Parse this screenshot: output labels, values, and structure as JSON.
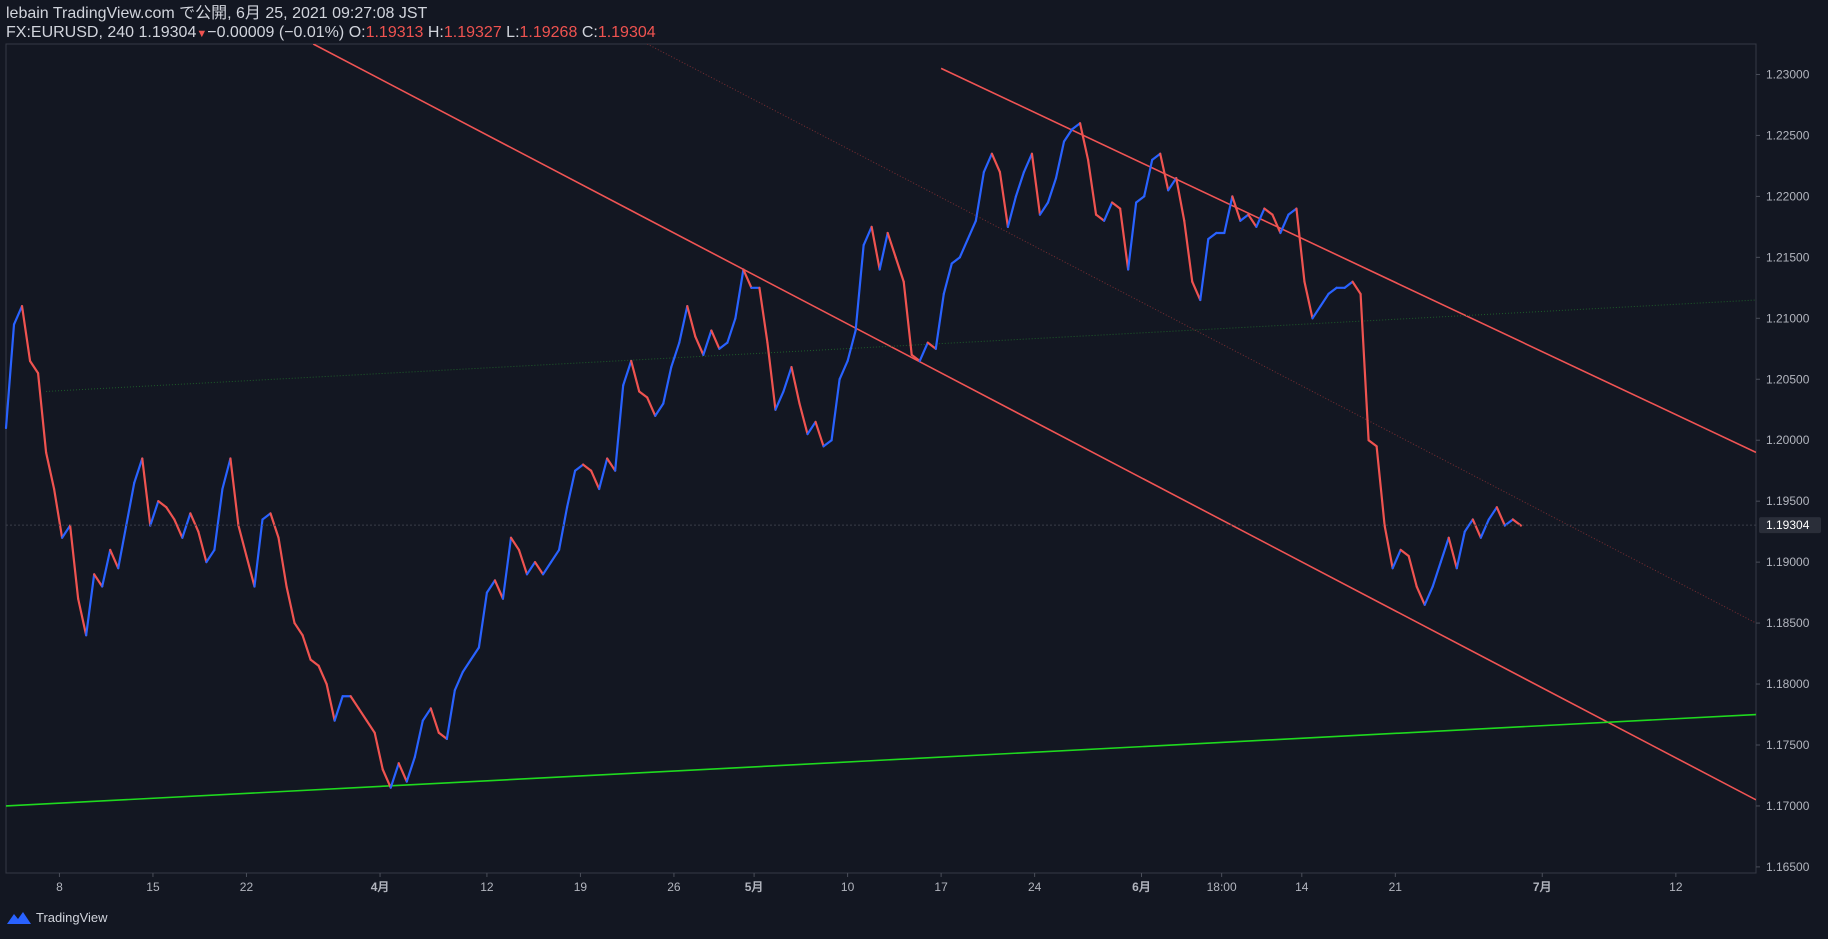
{
  "header": {
    "line1": "lebain TradingView.com で公開, 6月 25, 2021 09:27:08 JST",
    "symbol": "FX:EURUSD, 240",
    "last": "1.19304",
    "change": "−0.00009 (−0.01%)",
    "o_label": "O:",
    "o_value": "1.19313",
    "h_label": "H:",
    "h_value": "1.19327",
    "l_label": "L:",
    "l_value": "1.19268",
    "c_label": "C:",
    "c_value": "1.19304"
  },
  "footer": {
    "brand": "TradingView",
    "logo_icon": "tradingview-logo-icon"
  },
  "colors": {
    "background": "#131722",
    "up": "#2962ff",
    "down": "#ef5350",
    "trend_red": "#f05454",
    "trend_green": "#1fd91f"
  },
  "chart_data": {
    "type": "candlestick",
    "symbol": "FX:EURUSD",
    "interval": "240",
    "ylim": [
      1.1645,
      1.2325
    ],
    "y_ticks": [
      "1.23000",
      "1.22500",
      "1.22000",
      "1.21500",
      "1.21000",
      "1.20500",
      "1.20000",
      "1.19500",
      "1.19000",
      "1.18500",
      "1.18000",
      "1.17500",
      "1.17000",
      "1.16500"
    ],
    "last_price_label": "1.19304",
    "x_ticks": [
      {
        "label": "8",
        "d": 4
      },
      {
        "label": "15",
        "d": 11
      },
      {
        "label": "22",
        "d": 18
      },
      {
        "label": "4月",
        "d": 28,
        "bold": true
      },
      {
        "label": "12",
        "d": 36
      },
      {
        "label": "19",
        "d": 43
      },
      {
        "label": "26",
        "d": 50
      },
      {
        "label": "5月",
        "d": 56,
        "bold": true
      },
      {
        "label": "10",
        "d": 63
      },
      {
        "label": "17",
        "d": 70
      },
      {
        "label": "24",
        "d": 77
      },
      {
        "label": "6月",
        "d": 85,
        "bold": true
      },
      {
        "label": "18:00",
        "d": 91
      },
      {
        "label": "14",
        "d": 97
      },
      {
        "label": "21",
        "d": 104
      },
      {
        "label": "7月",
        "d": 115,
        "bold": true
      },
      {
        "label": "12",
        "d": 125
      }
    ],
    "price_path": [
      [
        0,
        1.201
      ],
      [
        0.6,
        1.2095
      ],
      [
        1.2,
        1.211
      ],
      [
        1.8,
        1.2065
      ],
      [
        2.4,
        1.2055
      ],
      [
        3,
        1.199
      ],
      [
        3.6,
        1.196
      ],
      [
        4.2,
        1.192
      ],
      [
        4.8,
        1.193
      ],
      [
        5.4,
        1.187
      ],
      [
        6,
        1.184
      ],
      [
        6.6,
        1.189
      ],
      [
        7.2,
        1.188
      ],
      [
        7.8,
        1.191
      ],
      [
        8.4,
        1.1895
      ],
      [
        9,
        1.193
      ],
      [
        9.6,
        1.1965
      ],
      [
        10.2,
        1.1985
      ],
      [
        10.8,
        1.193
      ],
      [
        11.4,
        1.195
      ],
      [
        12,
        1.1945
      ],
      [
        12.6,
        1.1935
      ],
      [
        13.2,
        1.192
      ],
      [
        13.8,
        1.194
      ],
      [
        14.4,
        1.1925
      ],
      [
        15,
        1.19
      ],
      [
        15.6,
        1.191
      ],
      [
        16.2,
        1.196
      ],
      [
        16.8,
        1.1985
      ],
      [
        17.4,
        1.193
      ],
      [
        18,
        1.1905
      ],
      [
        18.6,
        1.188
      ],
      [
        19.2,
        1.1935
      ],
      [
        19.8,
        1.194
      ],
      [
        20.4,
        1.192
      ],
      [
        21,
        1.188
      ],
      [
        21.6,
        1.185
      ],
      [
        22.2,
        1.184
      ],
      [
        22.8,
        1.182
      ],
      [
        23.4,
        1.1815
      ],
      [
        24,
        1.18
      ],
      [
        24.6,
        1.177
      ],
      [
        25.2,
        1.179
      ],
      [
        25.8,
        1.179
      ],
      [
        26.4,
        1.178
      ],
      [
        27,
        1.177
      ],
      [
        27.6,
        1.176
      ],
      [
        28.2,
        1.173
      ],
      [
        28.8,
        1.1715
      ],
      [
        29.4,
        1.1735
      ],
      [
        30,
        1.172
      ],
      [
        30.6,
        1.174
      ],
      [
        31.2,
        1.177
      ],
      [
        31.8,
        1.178
      ],
      [
        32.4,
        1.176
      ],
      [
        33,
        1.1755
      ],
      [
        33.6,
        1.1795
      ],
      [
        34.2,
        1.181
      ],
      [
        34.8,
        1.182
      ],
      [
        35.4,
        1.183
      ],
      [
        36,
        1.1875
      ],
      [
        36.6,
        1.1885
      ],
      [
        37.2,
        1.187
      ],
      [
        37.8,
        1.192
      ],
      [
        38.4,
        1.191
      ],
      [
        39,
        1.189
      ],
      [
        39.6,
        1.19
      ],
      [
        40.2,
        1.189
      ],
      [
        40.8,
        1.19
      ],
      [
        41.4,
        1.191
      ],
      [
        42,
        1.1945
      ],
      [
        42.6,
        1.1975
      ],
      [
        43.2,
        1.198
      ],
      [
        43.8,
        1.1975
      ],
      [
        44.4,
        1.196
      ],
      [
        45,
        1.1985
      ],
      [
        45.6,
        1.1975
      ],
      [
        46.2,
        1.2045
      ],
      [
        46.8,
        1.2065
      ],
      [
        47.4,
        1.204
      ],
      [
        48,
        1.2035
      ],
      [
        48.6,
        1.202
      ],
      [
        49.2,
        1.203
      ],
      [
        49.8,
        1.206
      ],
      [
        50.4,
        1.208
      ],
      [
        51,
        1.211
      ],
      [
        51.6,
        1.2085
      ],
      [
        52.2,
        1.207
      ],
      [
        52.8,
        1.209
      ],
      [
        53.4,
        1.2075
      ],
      [
        54,
        1.208
      ],
      [
        54.6,
        1.21
      ],
      [
        55.2,
        1.214
      ],
      [
        55.8,
        1.2125
      ],
      [
        56.4,
        1.2125
      ],
      [
        57,
        1.208
      ],
      [
        57.6,
        1.2025
      ],
      [
        58.2,
        1.204
      ],
      [
        58.8,
        1.206
      ],
      [
        59.4,
        1.203
      ],
      [
        60,
        1.2005
      ],
      [
        60.6,
        1.2015
      ],
      [
        61.2,
        1.1995
      ],
      [
        61.8,
        1.2
      ],
      [
        62.4,
        1.205
      ],
      [
        63,
        1.2065
      ],
      [
        63.6,
        1.209
      ],
      [
        64.2,
        1.216
      ],
      [
        64.8,
        1.2175
      ],
      [
        65.4,
        1.214
      ],
      [
        66,
        1.217
      ],
      [
        66.6,
        1.215
      ],
      [
        67.2,
        1.213
      ],
      [
        67.8,
        1.207
      ],
      [
        68.4,
        1.2065
      ],
      [
        69,
        1.208
      ],
      [
        69.6,
        1.2075
      ],
      [
        70.2,
        1.212
      ],
      [
        70.8,
        1.2145
      ],
      [
        71.4,
        1.215
      ],
      [
        72,
        1.2165
      ],
      [
        72.6,
        1.218
      ],
      [
        73.2,
        1.222
      ],
      [
        73.8,
        1.2235
      ],
      [
        74.4,
        1.222
      ],
      [
        75,
        1.2175
      ],
      [
        75.6,
        1.22
      ],
      [
        76.2,
        1.222
      ],
      [
        76.8,
        1.2235
      ],
      [
        77.4,
        1.2185
      ],
      [
        78,
        1.2195
      ],
      [
        78.6,
        1.2215
      ],
      [
        79.2,
        1.2245
      ],
      [
        79.8,
        1.2255
      ],
      [
        80.4,
        1.226
      ],
      [
        81,
        1.223
      ],
      [
        81.6,
        1.2185
      ],
      [
        82.2,
        1.218
      ],
      [
        82.8,
        1.2195
      ],
      [
        83.4,
        1.219
      ],
      [
        84,
        1.214
      ],
      [
        84.6,
        1.2195
      ],
      [
        85.2,
        1.22
      ],
      [
        85.8,
        1.223
      ],
      [
        86.4,
        1.2235
      ],
      [
        87,
        1.2205
      ],
      [
        87.6,
        1.2215
      ],
      [
        88.2,
        1.218
      ],
      [
        88.8,
        1.213
      ],
      [
        89.4,
        1.2115
      ],
      [
        90,
        1.2165
      ],
      [
        90.6,
        1.217
      ],
      [
        91.2,
        1.217
      ],
      [
        91.8,
        1.22
      ],
      [
        92.4,
        1.218
      ],
      [
        93,
        1.2185
      ],
      [
        93.6,
        1.2175
      ],
      [
        94.2,
        1.219
      ],
      [
        94.8,
        1.2185
      ],
      [
        95.4,
        1.217
      ],
      [
        96,
        1.2185
      ],
      [
        96.6,
        1.219
      ],
      [
        97.2,
        1.213
      ],
      [
        97.8,
        1.21
      ],
      [
        98.4,
        1.211
      ],
      [
        99,
        1.212
      ],
      [
        99.6,
        1.2125
      ],
      [
        100.2,
        1.2125
      ],
      [
        100.8,
        1.213
      ],
      [
        101.4,
        1.212
      ],
      [
        102,
        1.2
      ],
      [
        102.6,
        1.1995
      ],
      [
        103.2,
        1.193
      ],
      [
        103.8,
        1.1895
      ],
      [
        104.4,
        1.191
      ],
      [
        105,
        1.1905
      ],
      [
        105.6,
        1.188
      ],
      [
        106.2,
        1.1865
      ],
      [
        106.8,
        1.188
      ],
      [
        107.4,
        1.19
      ],
      [
        108,
        1.192
      ],
      [
        108.6,
        1.1895
      ],
      [
        109.2,
        1.1925
      ],
      [
        109.8,
        1.1935
      ],
      [
        110.4,
        1.192
      ],
      [
        111,
        1.1935
      ],
      [
        111.6,
        1.1945
      ],
      [
        112.2,
        1.193
      ],
      [
        112.8,
        1.1935
      ],
      [
        113.4,
        1.193
      ]
    ],
    "trendlines": [
      {
        "name": "upper-red-channel",
        "color": "#f05454",
        "p1": [
          70,
          1.2305
        ],
        "p2": [
          131,
          1.199
        ]
      },
      {
        "name": "lower-red-channel",
        "color": "#f05454",
        "p1": [
          23,
          1.2325
        ],
        "p2": [
          131,
          1.1705
        ]
      },
      {
        "name": "mid-channel-dotted",
        "color": "#7a2e33",
        "p1": [
          48,
          1.2325
        ],
        "p2": [
          131,
          1.185
        ]
      },
      {
        "name": "green-support",
        "color": "#1fd91f",
        "p1": [
          0,
          1.17
        ],
        "p2": [
          131,
          1.1775
        ]
      },
      {
        "name": "green-dotted",
        "color": "#1e5c2a",
        "p1": [
          3,
          1.204
        ],
        "p2": [
          131,
          1.2115
        ]
      }
    ],
    "x_domain": [
      0,
      131
    ]
  }
}
